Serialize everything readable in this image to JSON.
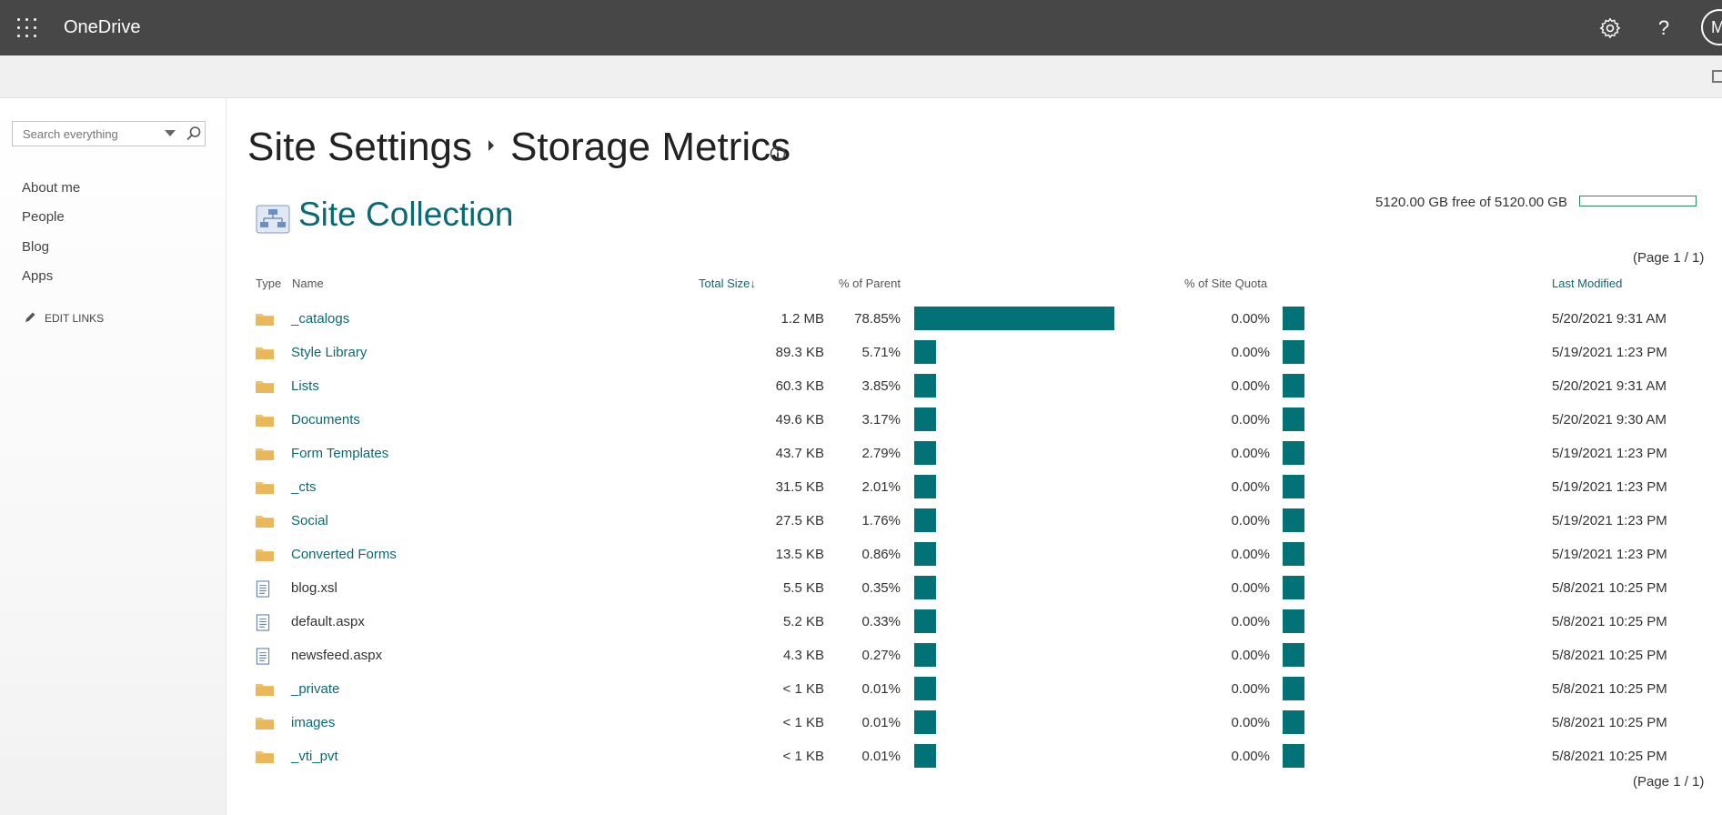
{
  "suite": {
    "app_title": "OneDrive",
    "help_glyph": "?",
    "avatar_initial": "M"
  },
  "search": {
    "placeholder": "Search everything"
  },
  "leftnav": {
    "links": [
      "About me",
      "People",
      "Blog",
      "Apps"
    ],
    "edit_links": "EDIT LINKS"
  },
  "page": {
    "breadcrumb_root": "Site Settings",
    "title": "Storage Metrics",
    "section_title": "Site Collection",
    "quota_text": "5120.00 GB free of 5120.00 GB",
    "quota_used_fraction": 0,
    "paging_top": "(Page 1 / 1)",
    "paging_bottom": "(Page 1 / 1)"
  },
  "columns": {
    "type": "Type",
    "name": "Name",
    "total_size": "Total Size",
    "sort_indicator": "↓",
    "pct_parent": "% of Parent",
    "pct_quota": "% of Site Quota",
    "last_modified": "Last Modified"
  },
  "colors": {
    "accent": "#0a6a74",
    "bar": "#037277",
    "suitebar": "#474747",
    "folder": "#f0c36d"
  },
  "rows": [
    {
      "type": "folder",
      "name": "_catalogs",
      "size": "1.2 MB",
      "pct": "78.85%",
      "pct_value": 78.85,
      "quota": "0.00%",
      "modified": "5/20/2021 9:31 AM"
    },
    {
      "type": "folder",
      "name": "Style Library",
      "size": "89.3 KB",
      "pct": "5.71%",
      "pct_value": 5.71,
      "quota": "0.00%",
      "modified": "5/19/2021 1:23 PM"
    },
    {
      "type": "folder",
      "name": "Lists",
      "size": "60.3 KB",
      "pct": "3.85%",
      "pct_value": 3.85,
      "quota": "0.00%",
      "modified": "5/20/2021 9:31 AM"
    },
    {
      "type": "folder",
      "name": "Documents",
      "size": "49.6 KB",
      "pct": "3.17%",
      "pct_value": 3.17,
      "quota": "0.00%",
      "modified": "5/20/2021 9:30 AM"
    },
    {
      "type": "folder",
      "name": "Form Templates",
      "size": "43.7 KB",
      "pct": "2.79%",
      "pct_value": 2.79,
      "quota": "0.00%",
      "modified": "5/19/2021 1:23 PM"
    },
    {
      "type": "folder",
      "name": "_cts",
      "size": "31.5 KB",
      "pct": "2.01%",
      "pct_value": 2.01,
      "quota": "0.00%",
      "modified": "5/19/2021 1:23 PM"
    },
    {
      "type": "folder",
      "name": "Social",
      "size": "27.5 KB",
      "pct": "1.76%",
      "pct_value": 1.76,
      "quota": "0.00%",
      "modified": "5/19/2021 1:23 PM"
    },
    {
      "type": "folder",
      "name": "Converted Forms",
      "size": "13.5 KB",
      "pct": "0.86%",
      "pct_value": 0.86,
      "quota": "0.00%",
      "modified": "5/19/2021 1:23 PM"
    },
    {
      "type": "file",
      "name": "blog.xsl",
      "size": "5.5 KB",
      "pct": "0.35%",
      "pct_value": 0.35,
      "quota": "0.00%",
      "modified": "5/8/2021 10:25 PM"
    },
    {
      "type": "file",
      "name": "default.aspx",
      "size": "5.2 KB",
      "pct": "0.33%",
      "pct_value": 0.33,
      "quota": "0.00%",
      "modified": "5/8/2021 10:25 PM"
    },
    {
      "type": "file",
      "name": "newsfeed.aspx",
      "size": "4.3 KB",
      "pct": "0.27%",
      "pct_value": 0.27,
      "quota": "0.00%",
      "modified": "5/8/2021 10:25 PM"
    },
    {
      "type": "folder",
      "name": "_private",
      "size": "< 1 KB",
      "pct": "0.01%",
      "pct_value": 0.01,
      "quota": "0.00%",
      "modified": "5/8/2021 10:25 PM"
    },
    {
      "type": "folder",
      "name": "images",
      "size": "< 1 KB",
      "pct": "0.01%",
      "pct_value": 0.01,
      "quota": "0.00%",
      "modified": "5/8/2021 10:25 PM"
    },
    {
      "type": "folder",
      "name": "_vti_pvt",
      "size": "< 1 KB",
      "pct": "0.01%",
      "pct_value": 0.01,
      "quota": "0.00%",
      "modified": "5/8/2021 10:25 PM"
    }
  ]
}
